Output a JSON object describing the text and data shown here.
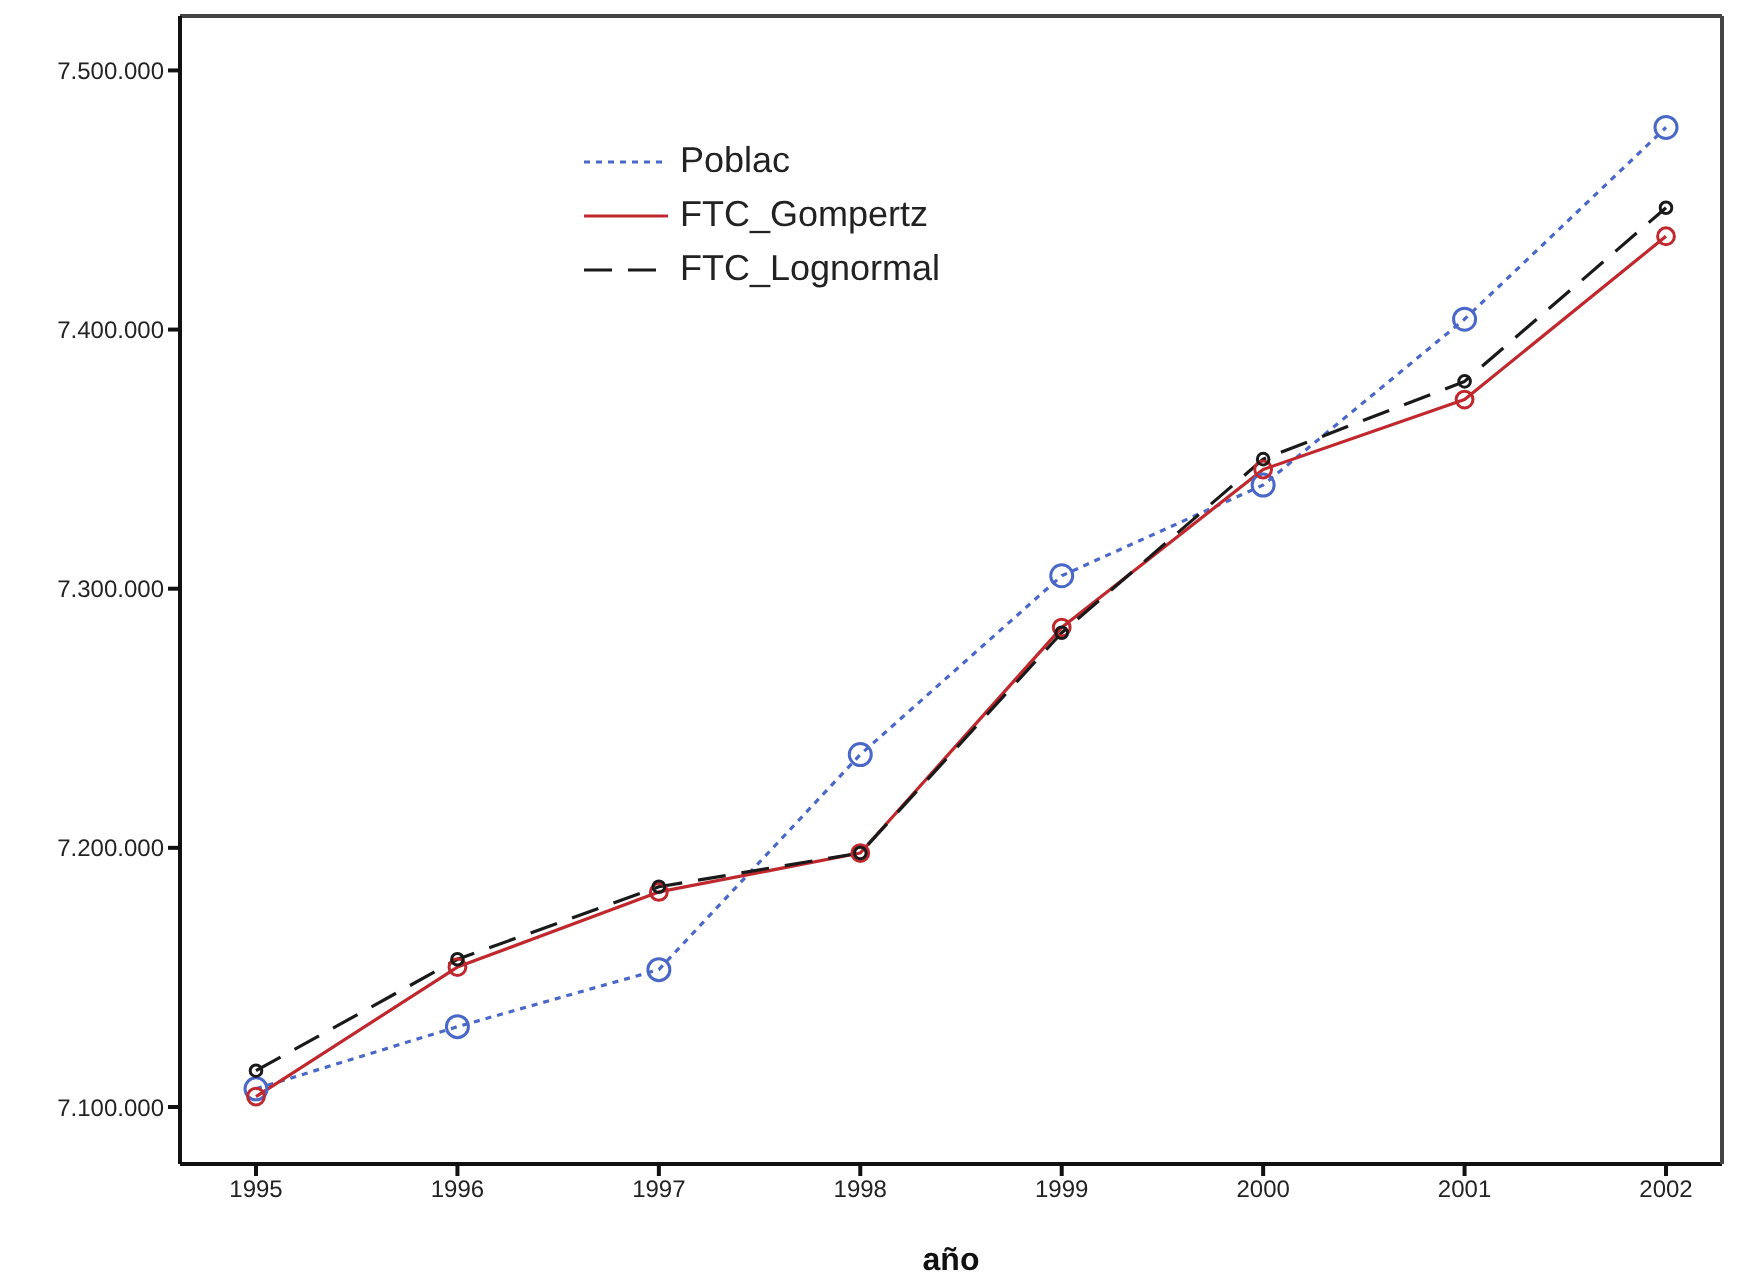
{
  "chart_data": {
    "type": "line",
    "xlabel": "año",
    "categories": [
      "1995",
      "1996",
      "1997",
      "1998",
      "1999",
      "2000",
      "2001",
      "2002"
    ],
    "series": [
      {
        "name": "Poblac",
        "color": "#4a68c8",
        "line_style": "dotted",
        "marker": "circle",
        "values": [
          7107000,
          7131000,
          7153000,
          7236000,
          7305000,
          7340000,
          7404000,
          7478000
        ]
      },
      {
        "name": "FTC_Gompertz",
        "color": "#c0282d",
        "line_style": "solid",
        "marker": "circle",
        "values": [
          7104000,
          7154000,
          7183000,
          7198000,
          7285000,
          7346000,
          7373000,
          7436000
        ]
      },
      {
        "name": "FTC_Lognormal",
        "color": "#1a1a1a",
        "line_style": "dashed",
        "marker": "circle",
        "values": [
          7114000,
          7157000,
          7185000,
          7198000,
          7283000,
          7350000,
          7380000,
          7447000
        ]
      }
    ],
    "ylim": [
      7078000,
      7521000
    ],
    "yticks": [
      {
        "value": 7100000,
        "label": "7.100.000"
      },
      {
        "value": 7200000,
        "label": "7.200.000"
      },
      {
        "value": 7300000,
        "label": "7.300.000"
      },
      {
        "value": 7400000,
        "label": "7.400.000"
      },
      {
        "value": 7500000,
        "label": "7.500.000"
      }
    ],
    "grid": false,
    "legend": "top left"
  }
}
